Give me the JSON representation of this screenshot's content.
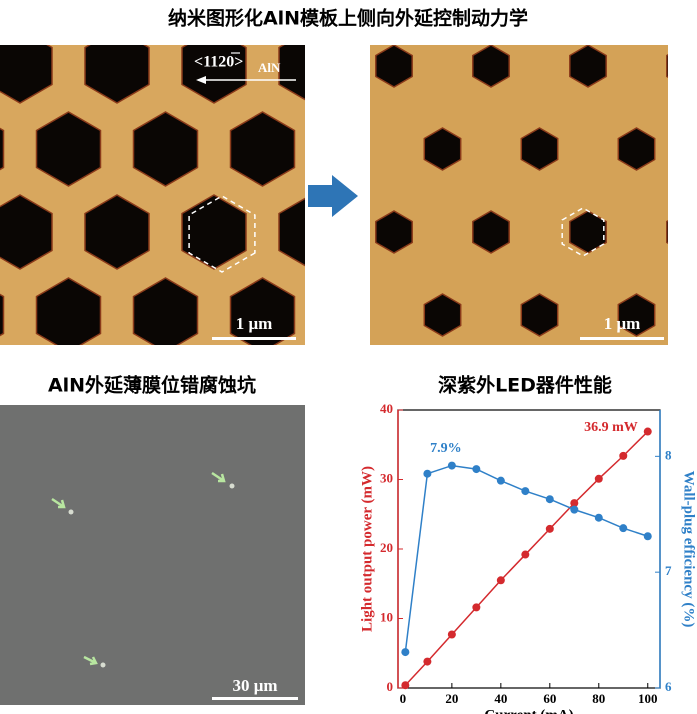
{
  "title": "纳米图形化AlN模板上侧向外延控制动力学",
  "afm_left": {
    "direction": "<1120>",
    "direction_sub": "AlN",
    "scale": "1 μm"
  },
  "afm_right": {
    "scale": "1 μm"
  },
  "sem": {
    "title": "AlN外延薄膜位错腐蚀坑",
    "scale": "30 μm"
  },
  "chart_data": {
    "type": "line",
    "title": "深紫外LED器件性能",
    "x_label": "Current (mA)",
    "y_label": "Light output power (mW)",
    "y2_label": "Wall-plug efficiency (%)",
    "x": [
      1,
      10,
      20,
      30,
      40,
      50,
      60,
      70,
      80,
      90,
      100
    ],
    "series": [
      {
        "color": "#d42a2e",
        "values": [
          0.4,
          3.8,
          7.7,
          11.6,
          15.5,
          19.2,
          22.9,
          26.6,
          30.1,
          33.4,
          36.9
        ]
      },
      {
        "color": "#2f80c8",
        "axis": "y2",
        "values": [
          6.31,
          7.85,
          7.92,
          7.89,
          7.79,
          7.7,
          7.63,
          7.54,
          7.47,
          7.38,
          7.31
        ]
      }
    ],
    "annotations": [
      "7.9%",
      "36.9 mW"
    ],
    "xlim": [
      -2,
      105
    ],
    "xticks": [
      0,
      20,
      40,
      60,
      80,
      100
    ],
    "ylim": [
      0,
      40
    ],
    "yticks": [
      0,
      10,
      20,
      30,
      40
    ],
    "y2lim": [
      6,
      8.4
    ],
    "y2ticks": [
      6,
      7,
      8
    ]
  }
}
